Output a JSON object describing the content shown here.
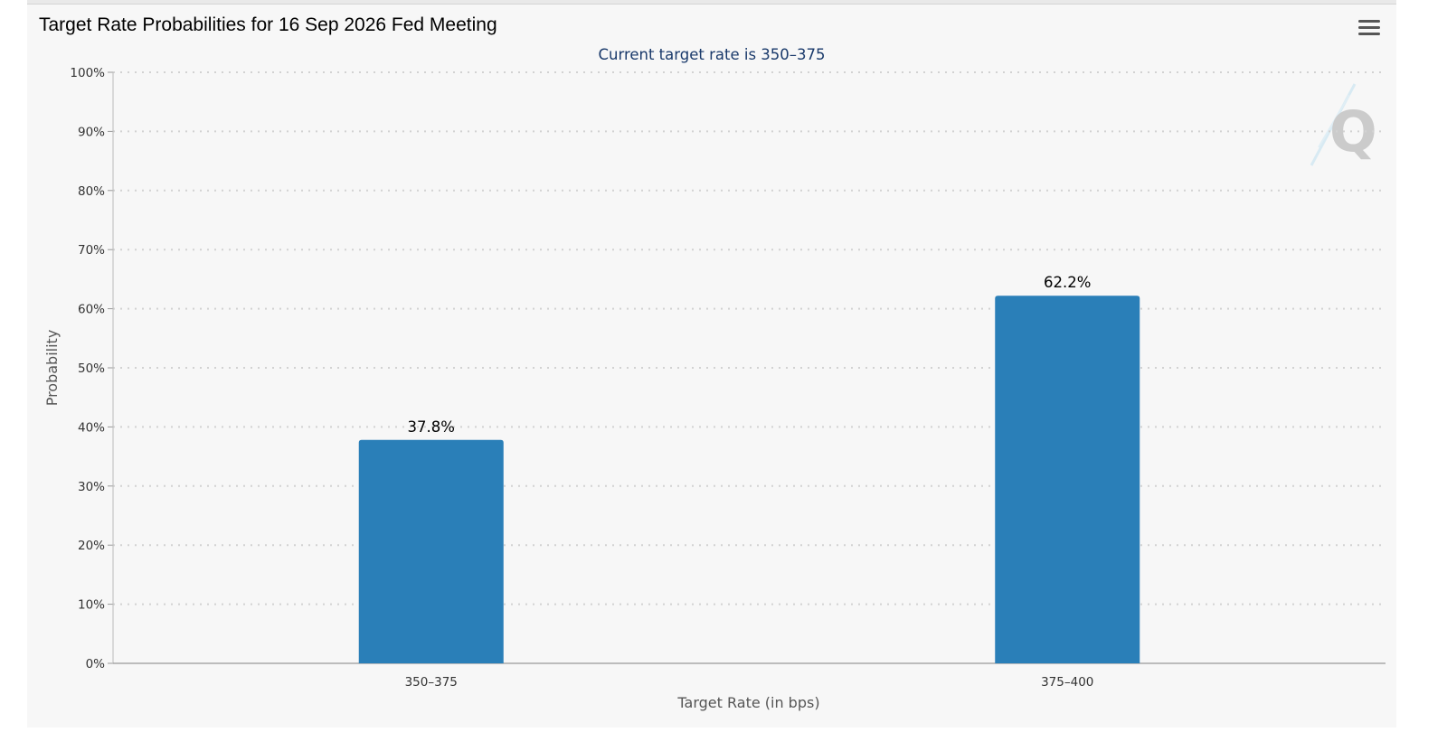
{
  "chart_data": {
    "type": "bar",
    "title": "Target Rate Probabilities for 16 Sep 2026 Fed Meeting",
    "subtitle": "Current target rate is 350–375",
    "xlabel": "Target Rate (in bps)",
    "ylabel": "Probability",
    "categories": [
      "350–375",
      "375–400"
    ],
    "values": [
      37.8,
      62.2
    ],
    "data_labels": [
      "37.8%",
      "62.2%"
    ],
    "ylim": [
      0,
      100
    ],
    "yticks": [
      {
        "value": 0,
        "label": "0%"
      },
      {
        "value": 10,
        "label": "10%"
      },
      {
        "value": 20,
        "label": "20%"
      },
      {
        "value": 30,
        "label": "30%"
      },
      {
        "value": 40,
        "label": "40%"
      },
      {
        "value": 50,
        "label": "50%"
      },
      {
        "value": 60,
        "label": "60%"
      },
      {
        "value": 70,
        "label": "70%"
      },
      {
        "value": 80,
        "label": "80%"
      },
      {
        "value": 90,
        "label": "90%"
      },
      {
        "value": 100,
        "label": "100%"
      }
    ],
    "grid": true,
    "legend": "none",
    "bar_color": "#2a7fb8",
    "menu_icon": "hamburger-menu-icon",
    "watermark_icon": "q-logo-icon"
  }
}
